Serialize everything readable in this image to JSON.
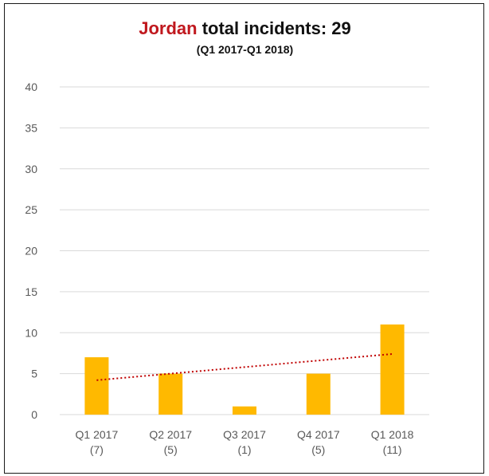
{
  "title": {
    "country": "Jordan",
    "rest": " total incidents: 29"
  },
  "subtitle": "(Q1 2017-Q1 2018)",
  "colors": {
    "bar": "#FFB900",
    "trendline": "#C00000",
    "grid": "#D9D9D9",
    "accent": "#C0181E"
  },
  "chart_data": {
    "type": "bar",
    "categories": [
      [
        "Q1 2017",
        "(7)"
      ],
      [
        "Q2 2017",
        "(5)"
      ],
      [
        "Q3 2017",
        "(1)"
      ],
      [
        "Q4 2017",
        "(5)"
      ],
      [
        "Q1 2018",
        "(11)"
      ]
    ],
    "values": [
      7,
      5,
      1,
      5,
      11
    ],
    "ylim": [
      0,
      40
    ],
    "yticks": [
      0,
      5,
      10,
      15,
      20,
      25,
      30,
      35,
      40
    ],
    "grid": true,
    "trendline": {
      "type": "linear",
      "style": "dotted",
      "start": 4.2,
      "end": 7.4
    }
  }
}
